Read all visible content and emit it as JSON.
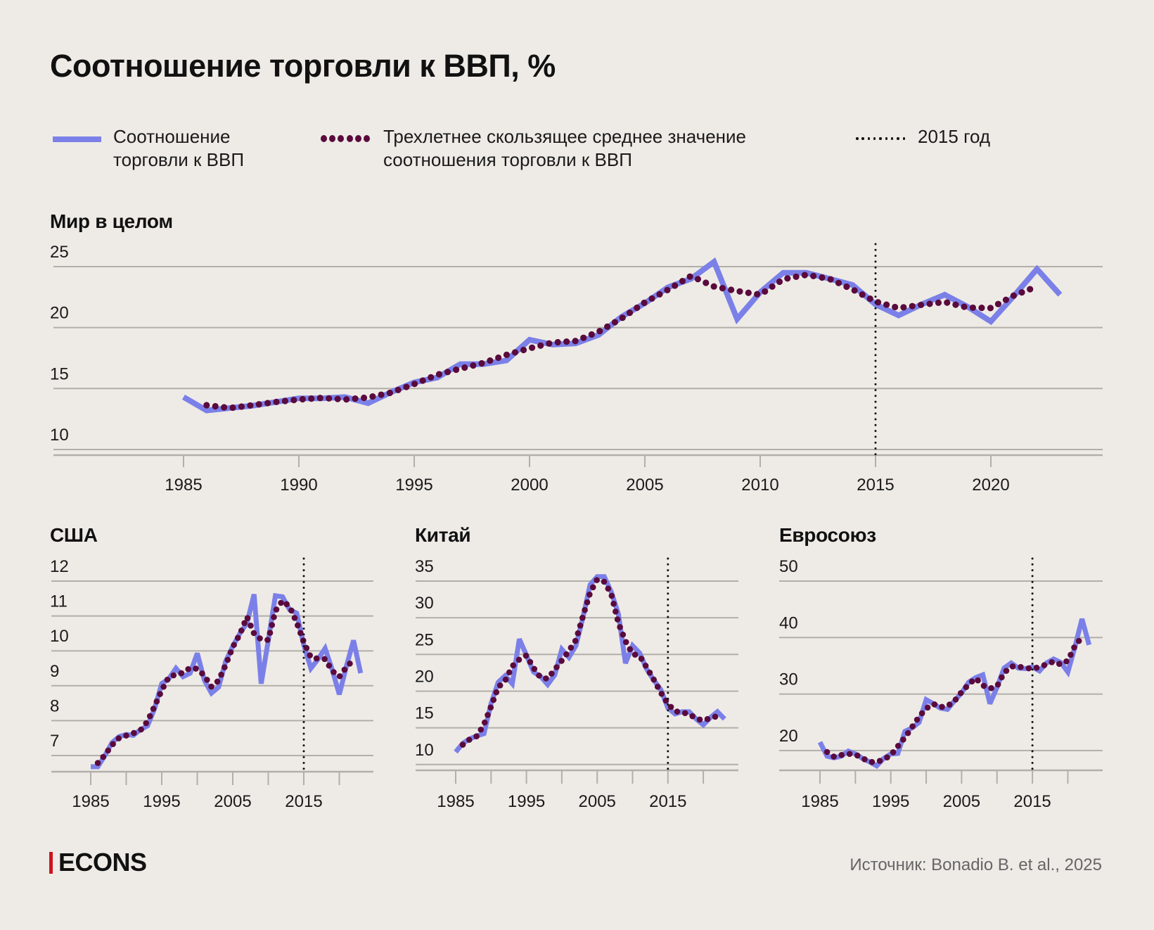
{
  "title": "Соотношение торговли к ВВП, %",
  "legend": {
    "series_label": "Соотношение\nторговли к ВВП",
    "series_label_l1": "Соотношение",
    "series_label_l2": "торговли к ВВП",
    "ma_label_l1": "Трехлетнее скользящее среднее значение",
    "ma_label_l2": "соотношения торговли к ВВП",
    "marker_label": "2015 год"
  },
  "colors": {
    "series": "#7b80e8",
    "moving_average": "#5a0a3c",
    "marker": "#111111",
    "grid": "#b2afaa",
    "background": "#eeebe6",
    "brand": "#d0121b"
  },
  "footer": {
    "logo": "ECONS",
    "source": "Источник: Bonadio B. et al., 2025"
  },
  "chart_data": [
    {
      "id": "world",
      "type": "line",
      "title": "Мир в целом",
      "xlabel": "",
      "ylabel": "",
      "x_start": 1985,
      "x_ticks": [
        1985,
        1990,
        1995,
        2000,
        2005,
        2010,
        2015,
        2020
      ],
      "x_tick_labels": [
        "1985",
        "1990",
        "1995",
        "2000",
        "2005",
        "2010",
        "2015",
        "2020"
      ],
      "y_ticks": [
        10,
        15,
        20,
        25
      ],
      "y_tick_labels": [
        "10",
        "15",
        "20",
        "25"
      ],
      "ylim": [
        10,
        25
      ],
      "marker_year": 2015,
      "moving_average_window": 3,
      "series": [
        {
          "name": "Соотношение торговли к ВВП",
          "values": [
            14.3,
            13.2,
            13.4,
            13.6,
            13.9,
            14.2,
            14.2,
            14.3,
            13.8,
            14.7,
            15.5,
            15.9,
            17.0,
            17.0,
            17.3,
            19.0,
            18.6,
            18.7,
            19.4,
            20.9,
            22.0,
            23.3,
            24.0,
            25.4,
            20.7,
            22.9,
            24.5,
            24.5,
            24.0,
            23.5,
            21.9,
            21.0,
            21.9,
            22.7,
            21.7,
            20.5,
            22.6,
            24.8,
            22.7
          ]
        }
      ]
    },
    {
      "id": "usa",
      "type": "line",
      "title": "США",
      "x_start": 1985,
      "x_ticks": [
        1985,
        1990,
        1995,
        2000,
        2005,
        2010,
        2015,
        2020
      ],
      "x_tick_labels": [
        "1985",
        "",
        "1995",
        "",
        "2005",
        "",
        "2015",
        ""
      ],
      "y_ticks": [
        7,
        8,
        9,
        10,
        11,
        12
      ],
      "y_tick_labels": [
        "7",
        "8",
        "9",
        "10",
        "11",
        "12"
      ],
      "ylim": [
        6.55,
        12
      ],
      "marker_year": 2015,
      "moving_average_window": 3,
      "series": [
        {
          "name": "Соотношение торговли к ВВП",
          "values": [
            6.68,
            6.68,
            7.0,
            7.37,
            7.54,
            7.6,
            7.58,
            7.74,
            7.85,
            8.35,
            9.06,
            9.2,
            9.5,
            9.26,
            9.36,
            9.93,
            9.16,
            8.79,
            8.96,
            9.7,
            10.13,
            10.5,
            10.8,
            11.62,
            9.06,
            10.3,
            11.58,
            11.55,
            11.18,
            11.08,
            10.17,
            9.5,
            9.76,
            10.07,
            9.46,
            8.75,
            9.56,
            10.3,
            9.36
          ]
        }
      ]
    },
    {
      "id": "china",
      "type": "line",
      "title": "Китай",
      "x_start": 1985,
      "x_ticks": [
        1985,
        1990,
        1995,
        2000,
        2005,
        2010,
        2015,
        2020
      ],
      "x_tick_labels": [
        "1985",
        "",
        "1995",
        "",
        "2005",
        "",
        "2015",
        ""
      ],
      "y_ticks": [
        10,
        15,
        20,
        25,
        30,
        35
      ],
      "y_tick_labels": [
        "10",
        "15",
        "20",
        "25",
        "30",
        "35"
      ],
      "ylim": [
        9.75,
        35
      ],
      "marker_year": 2015,
      "moving_average_window": 3,
      "series": [
        {
          "name": "Соотношение торговли к ВВП",
          "values": [
            11.7,
            12.9,
            13.5,
            13.9,
            14.2,
            18.3,
            21.2,
            22.1,
            21.0,
            27.1,
            24.9,
            22.6,
            22.0,
            20.9,
            22.2,
            25.7,
            24.6,
            26.2,
            30.1,
            34.5,
            35.6,
            35.6,
            33.5,
            30.5,
            23.8,
            26.2,
            25.2,
            23.0,
            21.5,
            20.2,
            17.7,
            16.9,
            17.2,
            17.2,
            16.2,
            15.4,
            16.4,
            17.2,
            16.2
          ]
        }
      ]
    },
    {
      "id": "eu",
      "type": "line",
      "title": "Евросоюз",
      "x_start": 1985,
      "x_ticks": [
        1985,
        1990,
        1995,
        2000,
        2005,
        2010,
        2015,
        2020
      ],
      "x_tick_labels": [
        "1985",
        "",
        "1995",
        "",
        "2005",
        "",
        "2015",
        ""
      ],
      "y_ticks": [
        20,
        30,
        40,
        50
      ],
      "y_tick_labels": [
        "20",
        "30",
        "40",
        "50"
      ],
      "ylim": [
        16.5,
        50
      ],
      "marker_year": 2015,
      "moving_average_window": 3,
      "series": [
        {
          "name": "Соотношение торговли к ВВП",
          "values": [
            21.5,
            19.0,
            18.7,
            19.0,
            19.9,
            19.4,
            18.6,
            18.0,
            17.3,
            18.6,
            19.4,
            19.5,
            23.4,
            24.0,
            25.0,
            29.0,
            28.3,
            27.5,
            27.3,
            28.8,
            30.2,
            32.1,
            32.9,
            33.4,
            28.3,
            31.2,
            34.6,
            35.5,
            34.6,
            34.5,
            34.8,
            34.1,
            35.5,
            36.2,
            35.6,
            33.9,
            38.3,
            43.3,
            38.7
          ]
        }
      ]
    }
  ]
}
